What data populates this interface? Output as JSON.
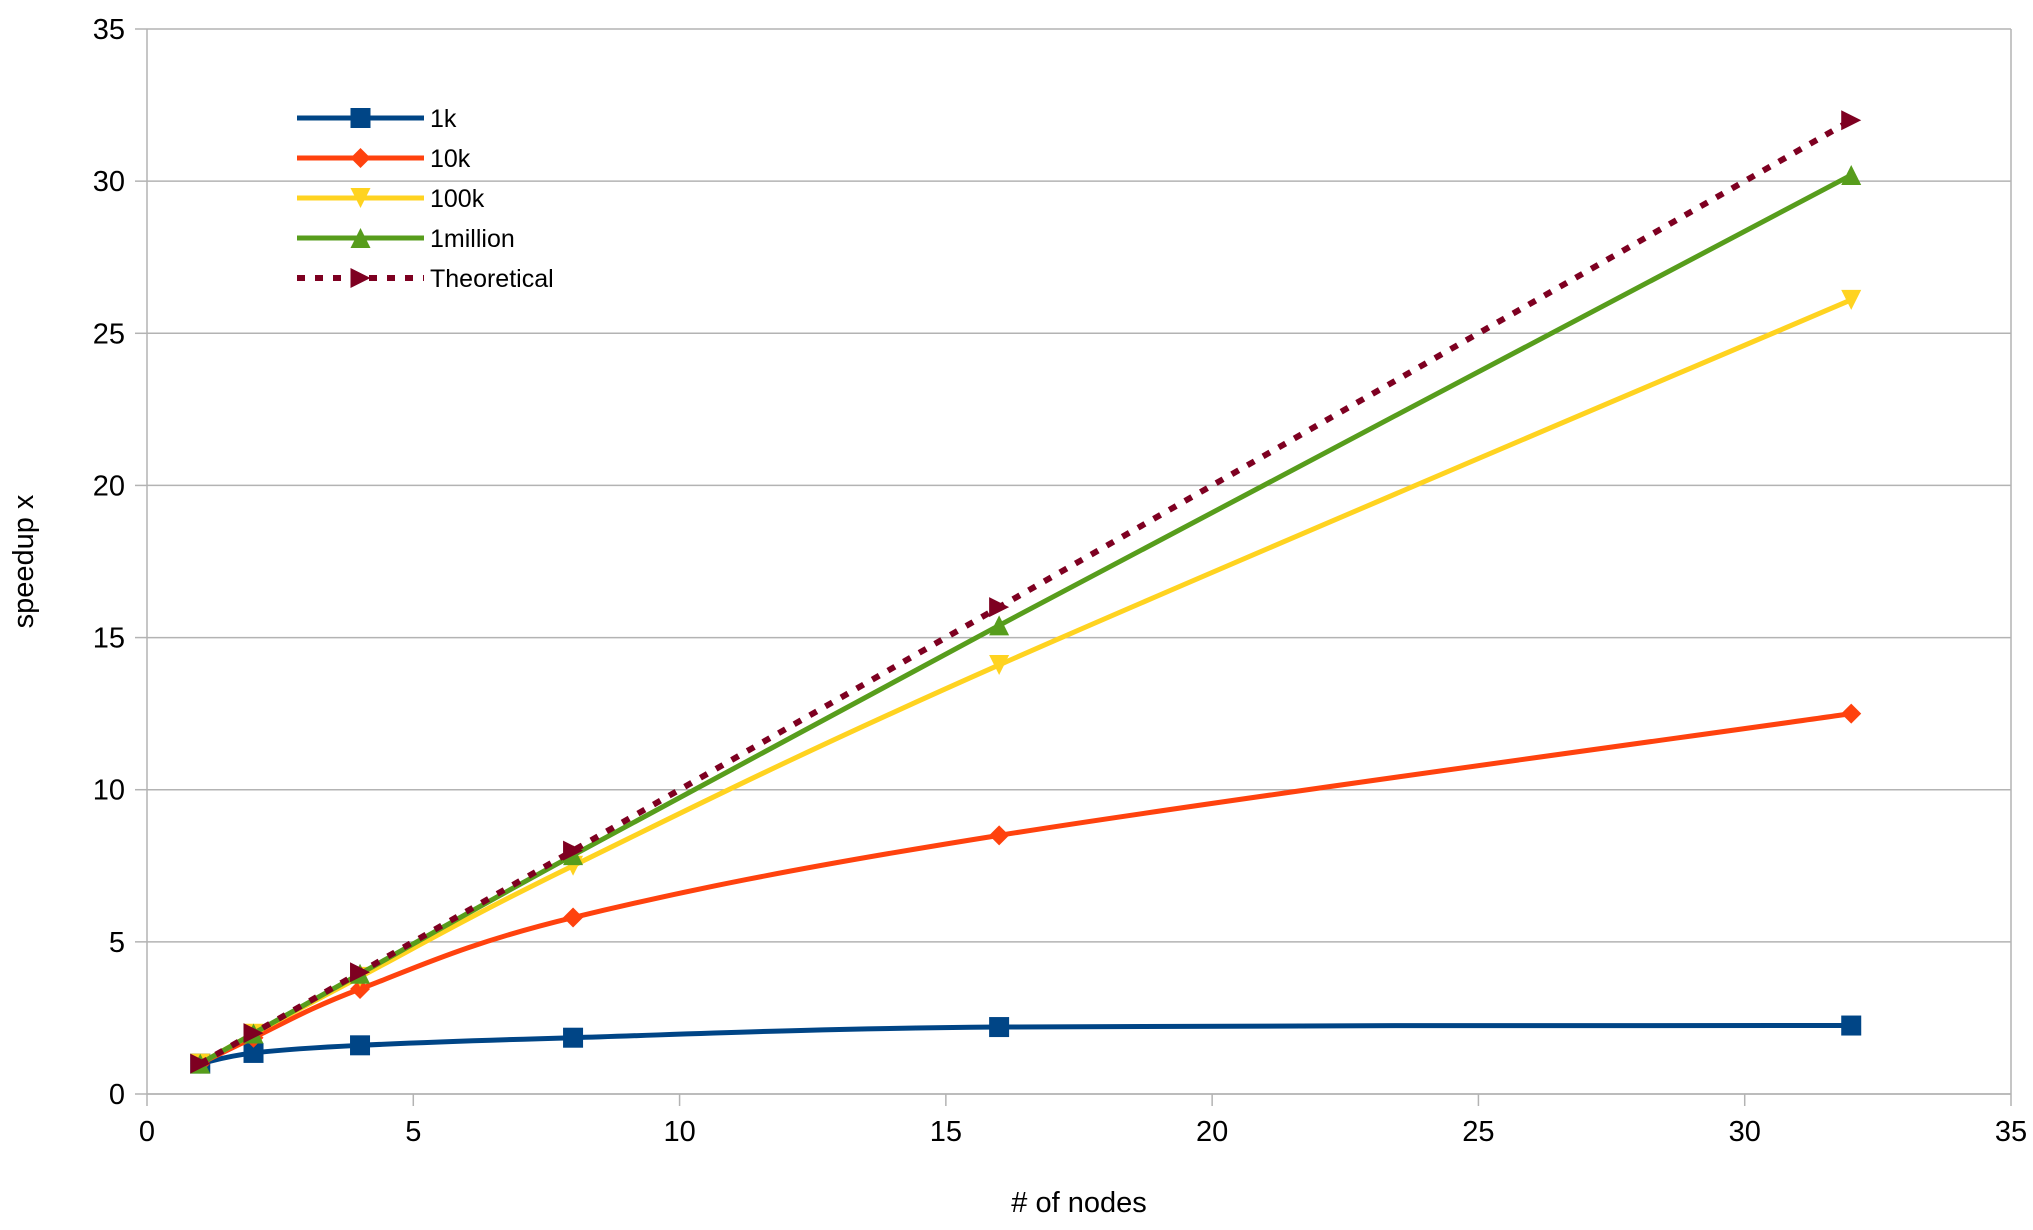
{
  "chart_data": {
    "type": "line",
    "title": "",
    "xlabel": "# of nodes",
    "ylabel": "speedup x",
    "xlim": [
      0,
      35
    ],
    "ylim": [
      0,
      35
    ],
    "xticks": [
      0,
      5,
      10,
      15,
      20,
      25,
      30,
      35
    ],
    "yticks": [
      0,
      5,
      10,
      15,
      20,
      25,
      30,
      35
    ],
    "grid": "horizontal",
    "legend_position": "top-left",
    "series": [
      {
        "name": "1k",
        "color": "#004586",
        "marker": "square",
        "dash": "solid",
        "x": [
          1,
          2,
          4,
          8,
          16,
          32
        ],
        "y": [
          1.0,
          1.35,
          1.6,
          1.85,
          2.2,
          2.25
        ]
      },
      {
        "name": "10k",
        "color": "#ff420e",
        "marker": "diamond",
        "dash": "solid",
        "x": [
          1,
          2,
          4,
          8,
          16,
          32
        ],
        "y": [
          1.0,
          1.85,
          3.45,
          5.8,
          8.5,
          12.5
        ]
      },
      {
        "name": "100k",
        "color": "#ffd320",
        "marker": "triangle-down",
        "dash": "solid",
        "x": [
          1,
          2,
          4,
          8,
          16,
          32
        ],
        "y": [
          1.0,
          1.98,
          3.85,
          7.5,
          14.1,
          26.1
        ]
      },
      {
        "name": "1million",
        "color": "#579d1c",
        "marker": "triangle-up",
        "dash": "solid",
        "x": [
          1,
          2,
          4,
          8,
          16,
          32
        ],
        "y": [
          1.0,
          1.99,
          3.95,
          7.85,
          15.4,
          30.2
        ]
      },
      {
        "name": "Theoretical",
        "color": "#7e0021",
        "marker": "triangle-right",
        "dash": "dotted",
        "x": [
          1,
          2,
          4,
          8,
          16,
          32
        ],
        "y": [
          1,
          2,
          4,
          8,
          16,
          32
        ]
      }
    ]
  }
}
